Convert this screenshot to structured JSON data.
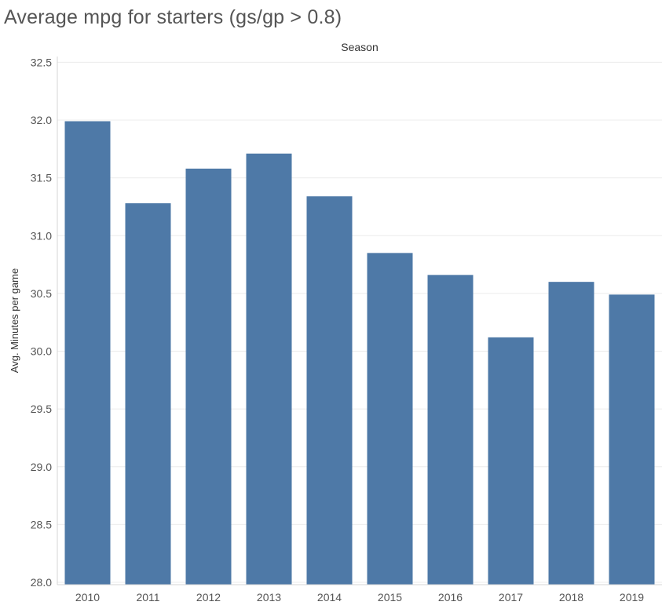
{
  "title": "Average mpg for starters (gs/gp > 0.8)",
  "chart_data": {
    "type": "bar",
    "header": "Season",
    "xlabel": "",
    "ylabel": "Avg. Minutes per game",
    "categories": [
      "2010",
      "2011",
      "2012",
      "2013",
      "2014",
      "2015",
      "2016",
      "2017",
      "2018",
      "2019"
    ],
    "values": [
      31.99,
      31.28,
      31.58,
      31.71,
      31.34,
      30.85,
      30.66,
      30.12,
      30.6,
      30.49
    ],
    "ylim": [
      27.98,
      32.55
    ],
    "yticks": [
      "32.5",
      "32.0",
      "31.5",
      "31.0",
      "30.5",
      "30.0",
      "29.5",
      "29.0",
      "28.5",
      "28.0"
    ],
    "grid": true,
    "bar_color": "#4e79a7",
    "grid_color": "#ececec",
    "axis_color": "#d4d4d4"
  }
}
